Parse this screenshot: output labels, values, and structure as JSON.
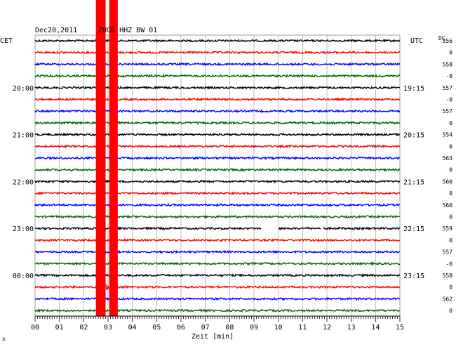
{
  "header": {
    "date": "Dec20,2011",
    "station": "ZUGS HHZ BW 01",
    "left_tz": "CET",
    "right_tz": "UTC",
    "dc_label": "DC"
  },
  "footer": {
    "xlabel": "Zeit [min]",
    "corner_mark": "x"
  },
  "chart_data": {
    "type": "line",
    "title": "Dec20,2011 ZUGS HHZ BW 01",
    "xlabel": "Zeit [min]",
    "xlim": [
      0,
      15
    ],
    "x_ticks": [
      "00",
      "01",
      "02",
      "03",
      "04",
      "05",
      "06",
      "07",
      "08",
      "09",
      "10",
      "11",
      "12",
      "13",
      "14",
      "15"
    ],
    "rows_per_hour": 4,
    "minutes_per_row": 15,
    "trace_colors": [
      "#000000",
      "#ff0000",
      "#0000ff",
      "#006400"
    ],
    "cet_labels": [
      {
        "row": 4,
        "text": "20:00"
      },
      {
        "row": 8,
        "text": "21:00"
      },
      {
        "row": 12,
        "text": "22:00"
      },
      {
        "row": 16,
        "text": "23:00"
      },
      {
        "row": 20,
        "text": "00:00"
      }
    ],
    "utc_labels": [
      {
        "row": 4,
        "text": "19:15"
      },
      {
        "row": 8,
        "text": "20:15"
      },
      {
        "row": 12,
        "text": "21:15"
      },
      {
        "row": 16,
        "text": "22:15"
      },
      {
        "row": 20,
        "text": "23:15"
      }
    ],
    "dc_offsets": [
      "556",
      "0",
      "558",
      "-0",
      "557",
      "-0",
      "557",
      "0",
      "554",
      "0",
      "563",
      "0",
      "560",
      "0",
      "560",
      "0",
      "559",
      "0",
      "557",
      "-0",
      "558",
      "0",
      "562",
      "0"
    ],
    "gaps": [
      {
        "row": 16,
        "from_min": 9.3,
        "to_min": 10.0
      },
      {
        "row": 16,
        "from_min": 11.75,
        "to_min": 11.85
      }
    ],
    "event": {
      "bands_min": [
        [
          2.5,
          2.9
        ],
        [
          3.05,
          3.4
        ]
      ],
      "event_row": 21,
      "onset_min": 2.6
    },
    "grid": true
  }
}
